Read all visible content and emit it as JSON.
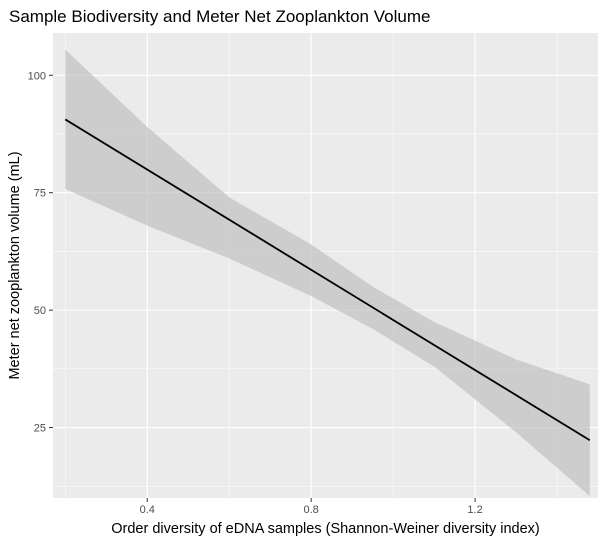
{
  "chart_data": {
    "type": "line",
    "title": "Sample Biodiversity and Meter Net Zooplankton Volume",
    "xlabel": "Order diversity of eDNA samples (Shannon-Weiner diversity index)",
    "ylabel": "Meter net zooplankton volume (mL)",
    "xlim": [
      0.17,
      1.5
    ],
    "ylim": [
      10,
      109
    ],
    "x_ticks": [
      0.4,
      0.8,
      1.2
    ],
    "x_tick_labels": [
      "0.4",
      "0.8",
      "1.2"
    ],
    "y_ticks": [
      25,
      50,
      75,
      100
    ],
    "y_tick_labels": [
      "25",
      "50",
      "75",
      "100"
    ],
    "grid": true,
    "series": [
      {
        "fit_line": {
          "x": [
            0.2,
            1.48
          ],
          "y": [
            90.6,
            22.3
          ]
        },
        "ribbon": {
          "x": [
            0.2,
            0.4,
            0.6,
            0.8,
            0.95,
            1.1,
            1.3,
            1.48
          ],
          "lower": [
            75.8,
            68.0,
            61.0,
            53.0,
            46.0,
            38.0,
            24.0,
            10.4
          ],
          "upper": [
            105.5,
            89.0,
            74.0,
            64.0,
            55.0,
            47.5,
            39.5,
            34.2
          ]
        },
        "color": "#000000",
        "ribbon_color": "#bdbdbd"
      }
    ],
    "background": "#ebebeb",
    "gridline_color": "#ffffff"
  }
}
